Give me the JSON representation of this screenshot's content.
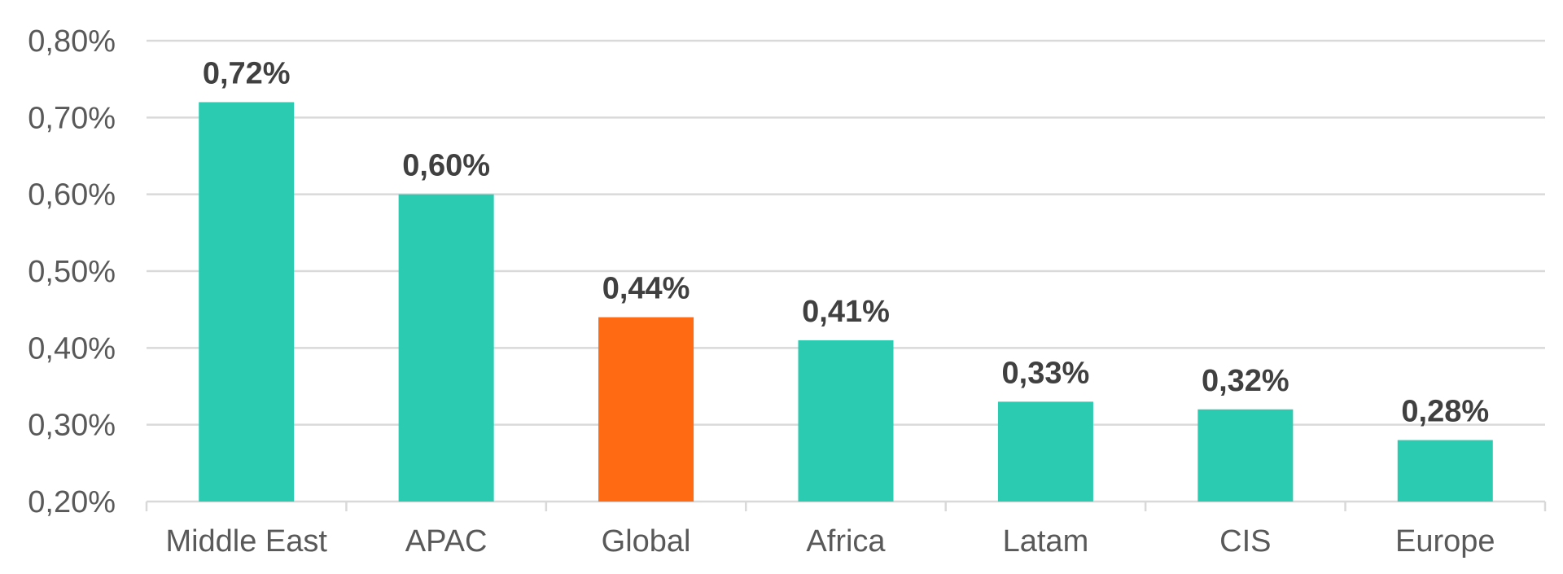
{
  "chart_data": {
    "type": "bar",
    "title": "",
    "xlabel": "",
    "ylabel": "",
    "categories": [
      "Middle East",
      "APAC",
      "Global",
      "Africa",
      "Latam",
      "CIS",
      "Europe"
    ],
    "values": [
      0.72,
      0.6,
      0.44,
      0.41,
      0.33,
      0.32,
      0.28
    ],
    "data_labels": [
      "0,72%",
      "0,60%",
      "0,44%",
      "0,41%",
      "0,33%",
      "0,32%",
      "0,28%"
    ],
    "ylim": [
      0.2,
      0.8
    ],
    "y_ticks": [
      0.2,
      0.3,
      0.4,
      0.5,
      0.6,
      0.7,
      0.8
    ],
    "y_tick_labels": [
      "0,20%",
      "0,30%",
      "0,40%",
      "0,50%",
      "0,60%",
      "0,70%",
      "0,80%"
    ],
    "grid": true,
    "legend": "none",
    "colors": {
      "default_bar": "#2bcbb2",
      "highlight_bar": "#ff6a13",
      "grid": "#d9d9d9",
      "axis_text": "#595959",
      "label_text": "#404040"
    },
    "highlight_category": "Global"
  }
}
